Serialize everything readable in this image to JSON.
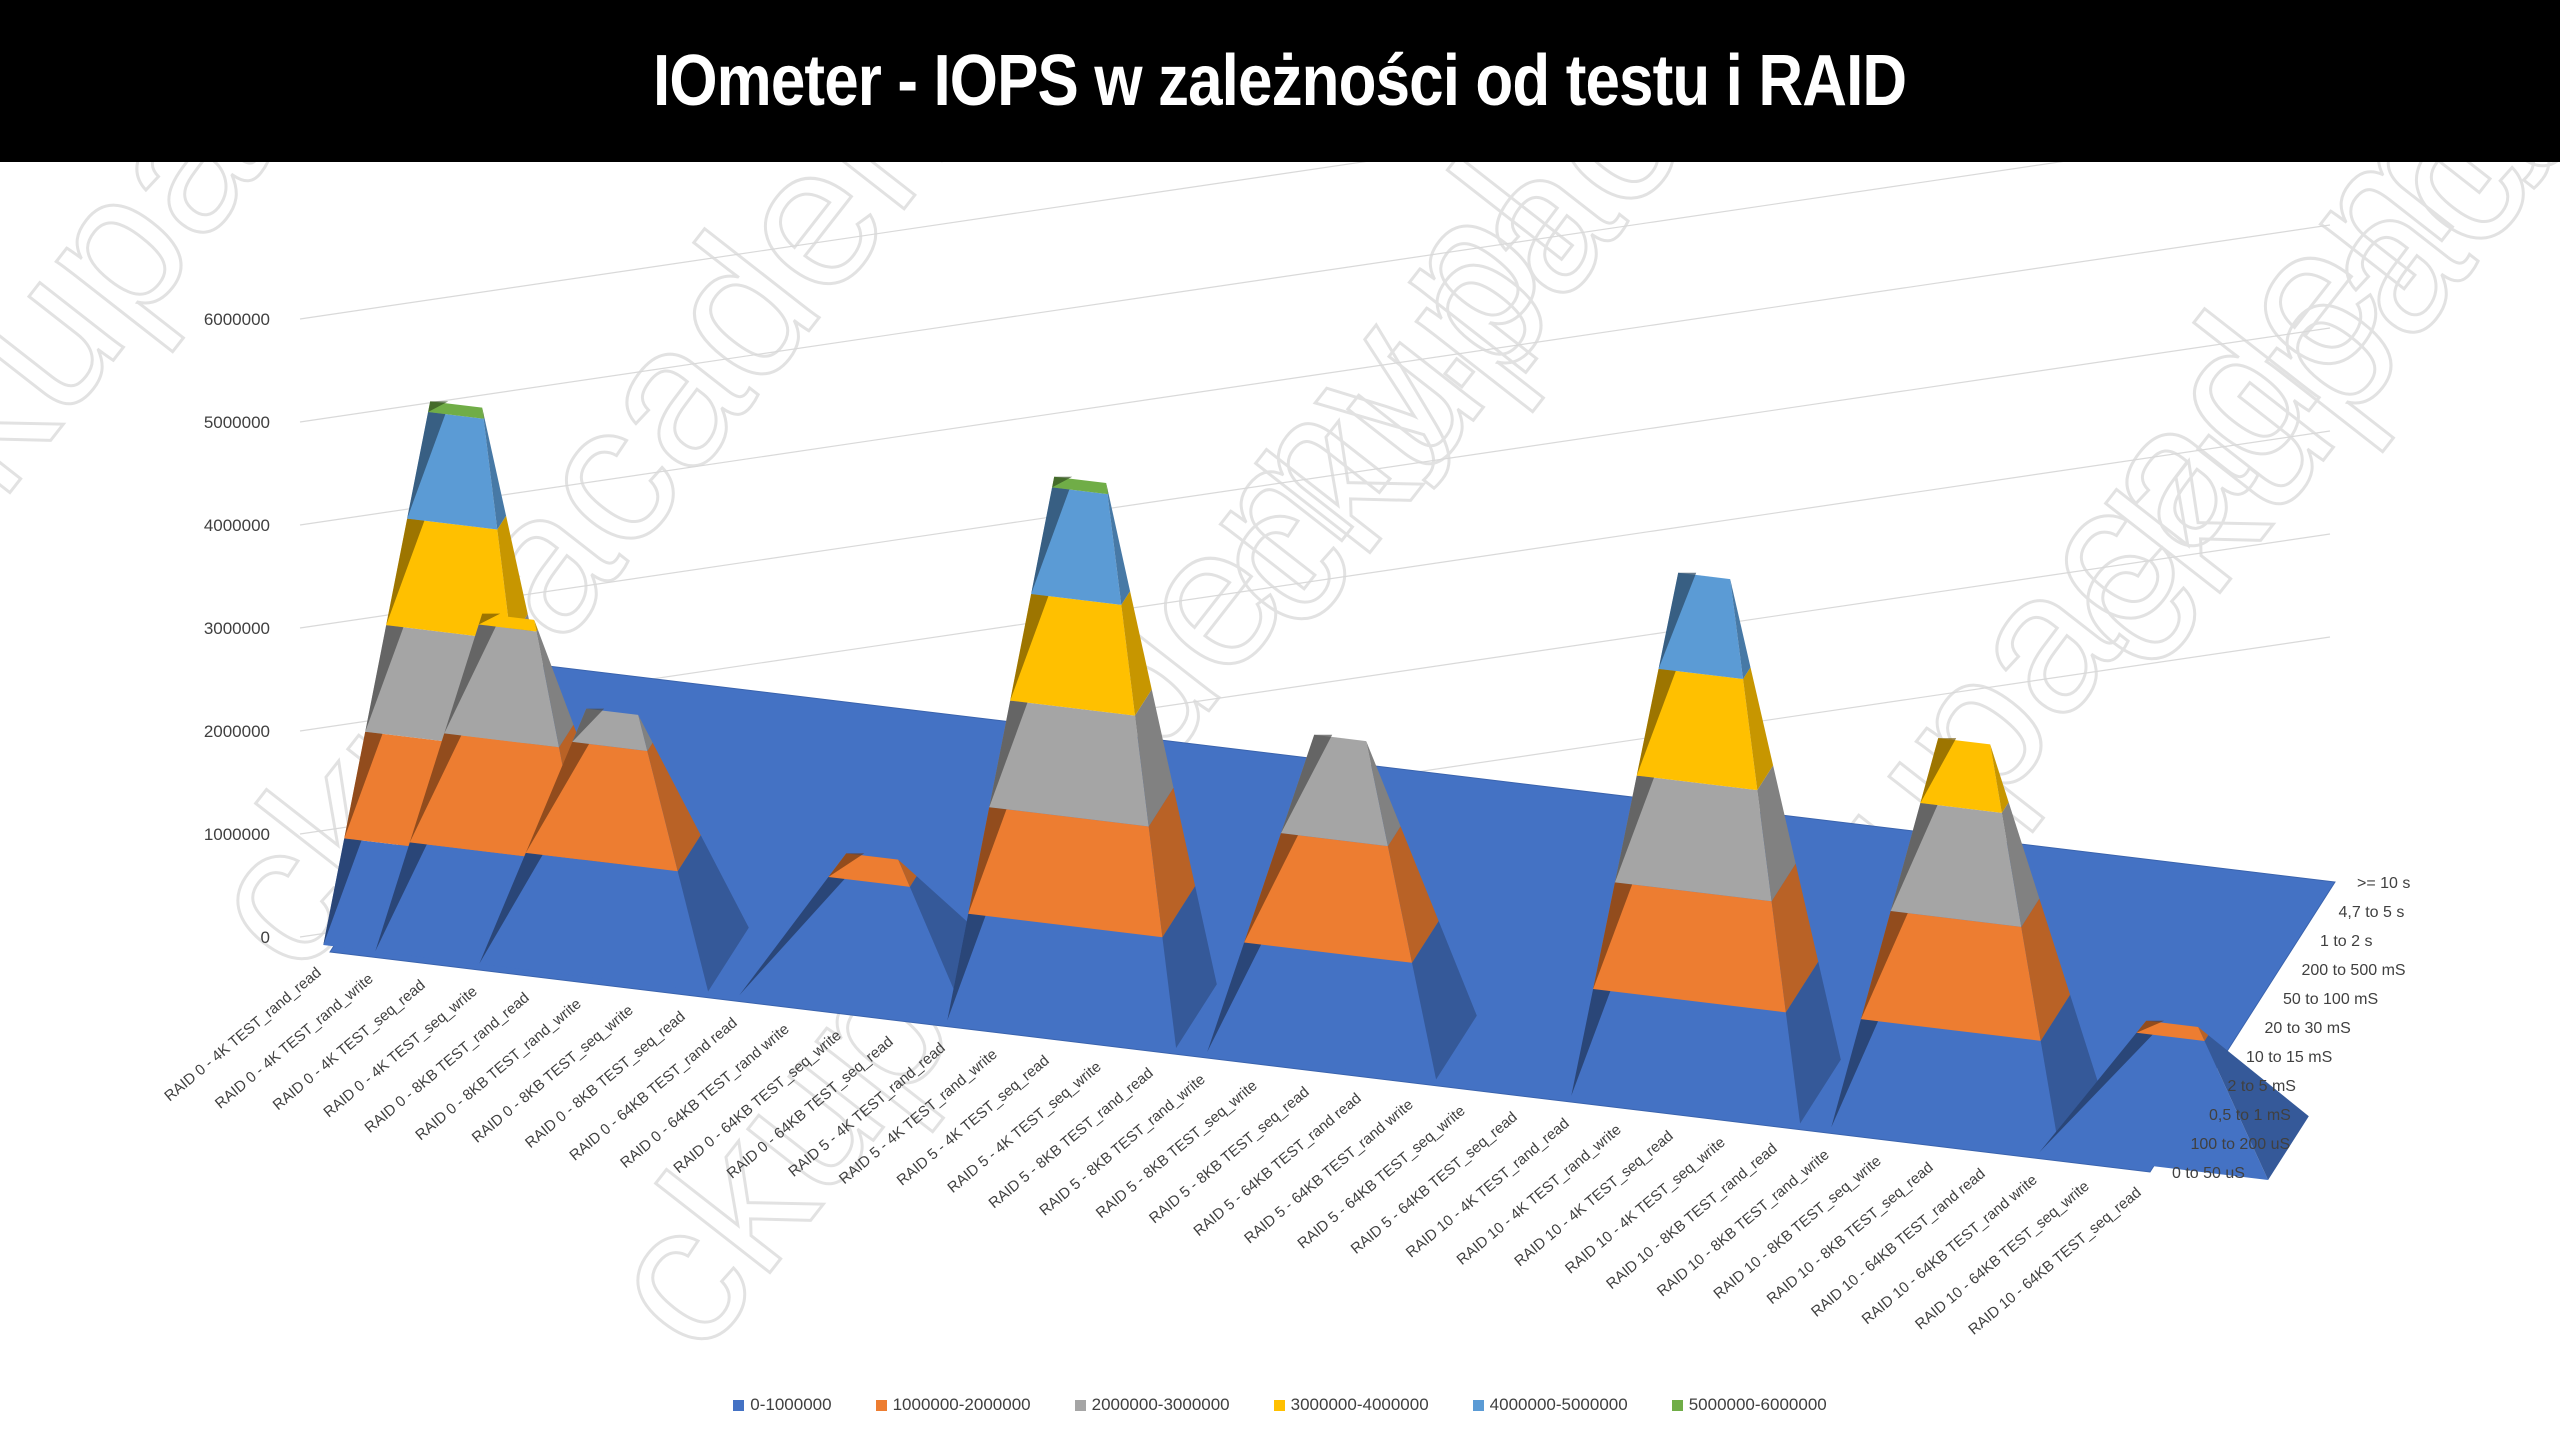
{
  "title": "IOmeter - IOPS w zależności od testu i RAID",
  "watermark": "ckupacademy.pl",
  "chart_data": {
    "type": "surface",
    "title": "IOmeter - IOPS w zależności od testu i RAID",
    "z_ticks": [
      "0",
      "1000000",
      "2000000",
      "3000000",
      "4000000",
      "5000000",
      "6000000"
    ],
    "zlim": [
      0,
      6000000
    ],
    "x_categories": [
      "RAID 0 - 4K TEST_rand_read",
      "RAID 0 - 4K TEST_rand_write",
      "RAID 0 - 4K TEST_seq_read",
      "RAID 0 - 4K TEST_seq_write",
      "RAID 0 - 8KB TEST_rand_read",
      "RAID 0 - 8KB TEST_rand_write",
      "RAID 0 - 8KB TEST_seq_write",
      "RAID 0 - 8KB TEST_seq_read",
      "RAID 0 - 64KB TEST_rand read",
      "RAID 0 - 64KB TEST_rand write",
      "RAID 0 - 64KB TEST_seq_write",
      "RAID 0 - 64KB TEST_seq_read",
      "RAID 5 - 4K TEST_rand_read",
      "RAID 5 - 4K TEST_rand_write",
      "RAID 5 - 4K TEST_seq_read",
      "RAID 5 - 4K TEST_seq_write",
      "RAID 5 - 8KB TEST_rand_read",
      "RAID 5 - 8KB TEST_rand_write",
      "RAID 5 - 8KB TEST_seq_write",
      "RAID 5 - 8KB TEST_seq_read",
      "RAID 5 - 64KB TEST_rand read",
      "RAID 5 - 64KB TEST_rand write",
      "RAID 5 - 64KB TEST_seq_write",
      "RAID 5 - 64KB TEST_seq_read",
      "RAID 10 - 4K TEST_rand_read",
      "RAID 10 - 4K TEST_rand_write",
      "RAID 10 - 4K TEST_seq_read",
      "RAID 10 - 4K TEST_seq_write",
      "RAID 10 - 8KB TEST_rand_read",
      "RAID 10 - 8KB TEST_rand_write",
      "RAID 10 - 8KB TEST_seq_write",
      "RAID 10 - 8KB TEST_seq_read",
      "RAID 10 - 64KB TEST_rand read",
      "RAID 10 - 64KB TEST_rand write",
      "RAID 10 - 64KB TEST_seq_write",
      "RAID 10 - 64KB TEST_seq_read"
    ],
    "y_categories": [
      "0 to 50 uS",
      "100 to 200 uS",
      "0,5 to 1 mS",
      "2 to 5 mS",
      "10 to 15 mS",
      "20 to 30 mS",
      "50 to 100 mS",
      "200 to 500 mS",
      "1 to 2 s",
      "4,7 to 5 s",
      ">= 10 s"
    ],
    "peaks_approx": [
      {
        "x": "RAID 0 - 4K TEST_seq_read",
        "y": "100 to 200 uS",
        "value": 5100000
      },
      {
        "x": "RAID 0 - 4K TEST_seq_write",
        "y": "100 to 200 uS",
        "value": 3100000
      },
      {
        "x": "RAID 0 - 8KB TEST_rand_write",
        "y": "100 to 200 uS",
        "value": 2300000
      },
      {
        "x": "RAID 0 - 64KB TEST_seq_write",
        "y": "100 to 200 uS",
        "value": 1200000
      },
      {
        "x": "RAID 5 - 4K TEST_seq_read",
        "y": "100 to 200 uS",
        "value": 5100000
      },
      {
        "x": "RAID 5 - 8KB TEST_seq_read",
        "y": "100 to 200 uS",
        "value": 2900000
      },
      {
        "x": "RAID 10 - 4K TEST_seq_read",
        "y": "100 to 200 uS",
        "value": 4900000
      },
      {
        "x": "RAID 10 - 8KB TEST_seq_read",
        "y": "100 to 200 uS",
        "value": 3600000
      },
      {
        "x": "RAID 10 - 64KB TEST_seq_read",
        "y": "100 to 200 uS",
        "value": 1100000
      }
    ],
    "legend": [
      {
        "name": "0-1000000",
        "color": "#4472C4"
      },
      {
        "name": "1000000-2000000",
        "color": "#ED7D31"
      },
      {
        "name": "2000000-3000000",
        "color": "#A5A5A5"
      },
      {
        "name": "3000000-4000000",
        "color": "#FFC000"
      },
      {
        "name": "4000000-5000000",
        "color": "#5B9BD5"
      },
      {
        "name": "5000000-6000000",
        "color": "#70AD47"
      }
    ],
    "legend_position": "bottom",
    "grid": true
  }
}
